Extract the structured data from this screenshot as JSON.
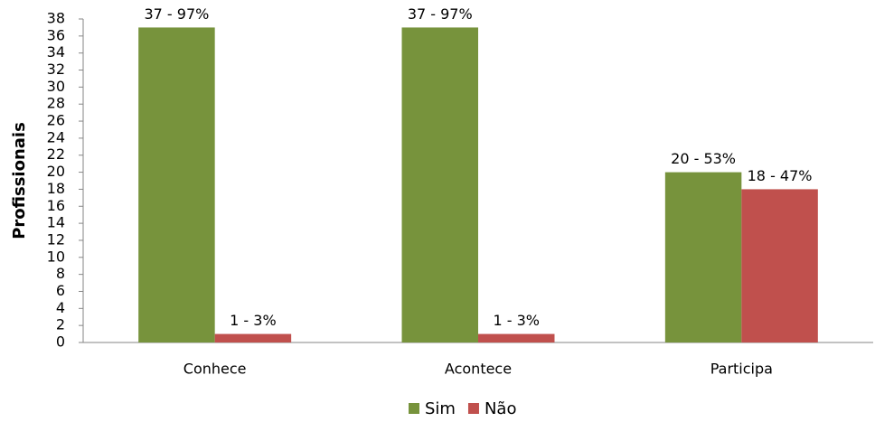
{
  "chart_data": {
    "type": "bar",
    "y_label": "Profissionais",
    "categories": [
      "Conhece",
      "Acontece",
      "Participa"
    ],
    "series": [
      {
        "name": "Sim",
        "color": "#77933c",
        "values": [
          37,
          37,
          20
        ],
        "value_labels": [
          "37 - 97%",
          "37 - 97%",
          "20 - 53%"
        ]
      },
      {
        "name": "Não",
        "color": "#c0504d",
        "values": [
          1,
          1,
          18
        ],
        "value_labels": [
          "1 - 3%",
          "1 - 3%",
          "18 - 47%"
        ]
      }
    ],
    "ylim": [
      0,
      38
    ],
    "yticks": [
      0,
      2,
      4,
      6,
      8,
      10,
      12,
      14,
      16,
      18,
      20,
      22,
      24,
      26,
      28,
      30,
      32,
      34,
      36,
      38
    ],
    "grid": false,
    "legend": "bottom"
  }
}
